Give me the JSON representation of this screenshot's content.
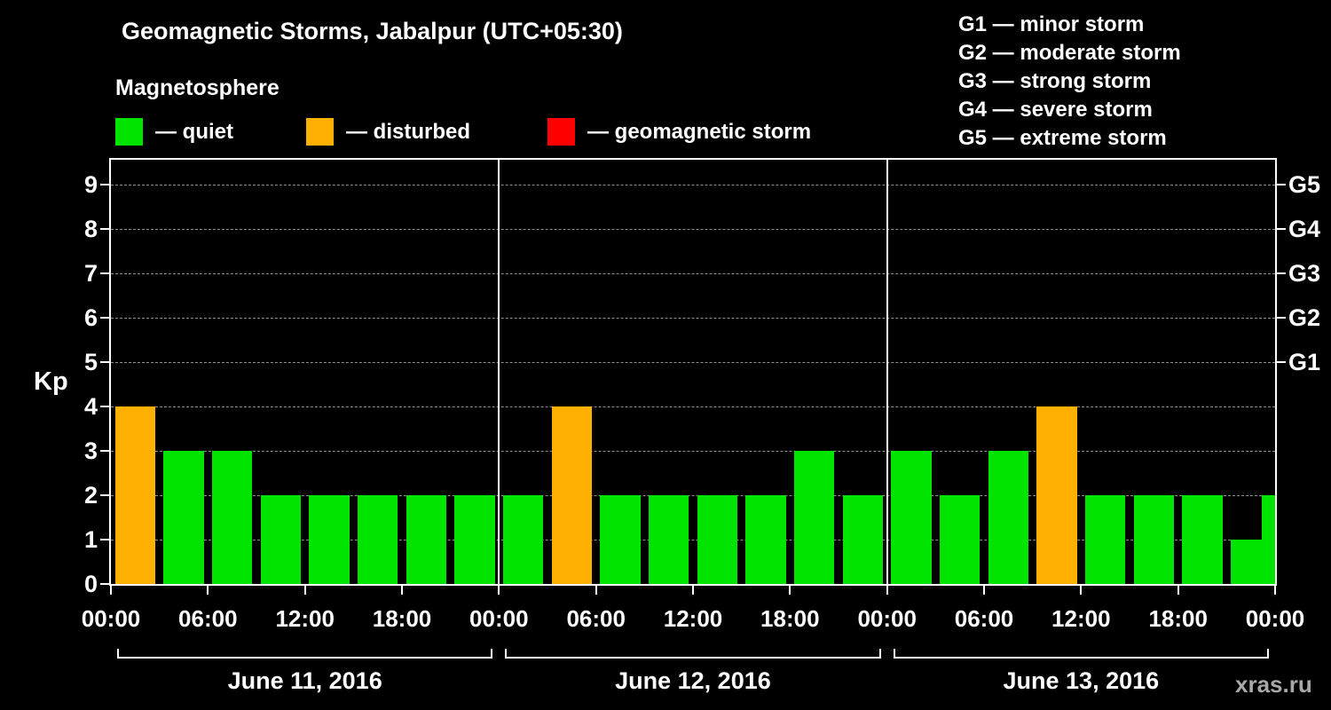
{
  "header": {
    "title": "Geomagnetic Storms, Jabalpur (UTC+05:30)",
    "subtitle": "Magnetosphere"
  },
  "legend": {
    "items": [
      {
        "key": "quiet",
        "label": "— quiet"
      },
      {
        "key": "disturbed",
        "label": "— disturbed"
      },
      {
        "key": "storm",
        "label": "— geomagnetic storm"
      }
    ]
  },
  "g_legend": [
    "G1 — minor storm",
    "G2 — moderate storm",
    "G3 — strong storm",
    "G4 — severe storm",
    "G5 — extreme storm"
  ],
  "watermark": "xras.ru",
  "chart_data": {
    "type": "bar",
    "title": "Geomagnetic Storms, Jabalpur (UTC+05:30)",
    "ylabel": "Kp",
    "xlabel": "",
    "ylim": [
      0,
      9.6
    ],
    "grid": true,
    "legend_position": "top-left",
    "yticks": [
      0,
      1,
      2,
      3,
      4,
      5,
      6,
      7,
      8,
      9
    ],
    "x_tick_labels": [
      "00:00",
      "06:00",
      "12:00",
      "18:00",
      "00:00",
      "06:00",
      "12:00",
      "18:00",
      "00:00",
      "06:00",
      "12:00",
      "18:00",
      "00:00"
    ],
    "right_labels": [
      {
        "label": "G1",
        "kp": 5
      },
      {
        "label": "G2",
        "kp": 6
      },
      {
        "label": "G3",
        "kp": 7
      },
      {
        "label": "G4",
        "kp": 8
      },
      {
        "label": "G5",
        "kp": 9
      }
    ],
    "days": [
      {
        "label": "June 11, 2016",
        "values": [
          4,
          3,
          3,
          2,
          2,
          2,
          2,
          2
        ]
      },
      {
        "label": "June 12, 2016",
        "values": [
          2,
          4,
          2,
          2,
          2,
          2,
          3,
          2
        ]
      },
      {
        "label": "June 13, 2016",
        "values": [
          3,
          2,
          3,
          4,
          2,
          2,
          2,
          1
        ]
      }
    ],
    "next_day_partial_value": 2,
    "interval_hours": 3,
    "colors": {
      "quiet": "#00e400",
      "disturbed": "#ffb000",
      "storm": "#ff0000"
    },
    "thresholds": {
      "disturbed_min": 4,
      "storm_min": 5
    }
  }
}
